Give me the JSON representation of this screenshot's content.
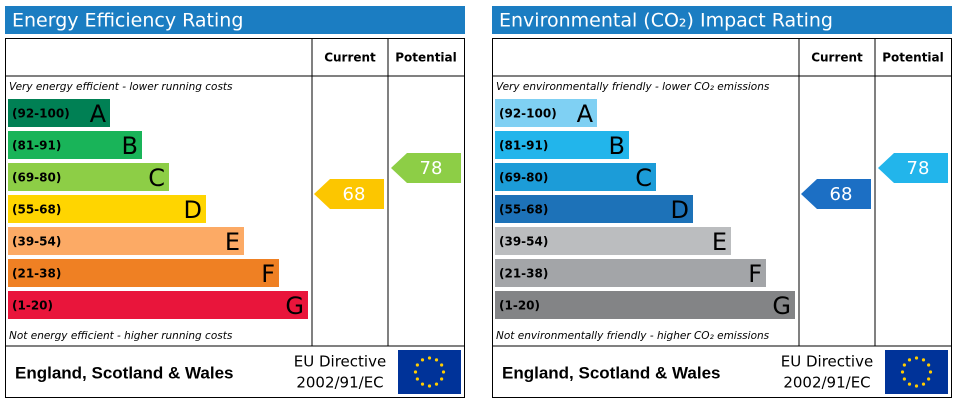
{
  "panels": [
    {
      "title": "Energy Efficiency Rating",
      "current_label": "Current",
      "potential_label": "Potential",
      "top_note": "Very energy efficient - lower running costs",
      "bottom_note": "Not energy efficient - higher running costs",
      "bands": [
        {
          "range": "(92-100)",
          "letter": "A",
          "color": "#008054"
        },
        {
          "range": "(81-91)",
          "letter": "B",
          "color": "#19b459"
        },
        {
          "range": "(69-80)",
          "letter": "C",
          "color": "#8dce46"
        },
        {
          "range": "(55-68)",
          "letter": "D",
          "color": "#ffd500"
        },
        {
          "range": "(39-54)",
          "letter": "E",
          "color": "#fcaa65"
        },
        {
          "range": "(21-38)",
          "letter": "F",
          "color": "#ef8023"
        },
        {
          "range": "(1-20)",
          "letter": "G",
          "color": "#e9153b"
        }
      ],
      "current": 68,
      "current_color": "#fcc600",
      "potential": 78,
      "potential_color": "#8dce46",
      "region": "England, Scotland & Wales",
      "directive_line1": "EU Directive",
      "directive_line2": "2002/91/EC"
    },
    {
      "title": "Environmental (CO₂) Impact Rating",
      "current_label": "Current",
      "potential_label": "Potential",
      "top_note": "Very environmentally friendly - lower CO₂ emissions",
      "bottom_note": "Not environmentally friendly - higher CO₂ emissions",
      "bands": [
        {
          "range": "(92-100)",
          "letter": "A",
          "color": "#7fd0f3"
        },
        {
          "range": "(81-91)",
          "letter": "B",
          "color": "#22b5eb"
        },
        {
          "range": "(69-80)",
          "letter": "C",
          "color": "#1c9cd8"
        },
        {
          "range": "(55-68)",
          "letter": "D",
          "color": "#1d72b8"
        },
        {
          "range": "(39-54)",
          "letter": "E",
          "color": "#bbbdbf"
        },
        {
          "range": "(21-38)",
          "letter": "F",
          "color": "#a3a5a8"
        },
        {
          "range": "(1-20)",
          "letter": "G",
          "color": "#838486"
        }
      ],
      "current": 68,
      "current_color": "#1c6fc4",
      "potential": 78,
      "potential_color": "#22b5eb",
      "region": "England, Scotland & Wales",
      "directive_line1": "EU Directive",
      "directive_line2": "2002/91/EC"
    }
  ]
}
